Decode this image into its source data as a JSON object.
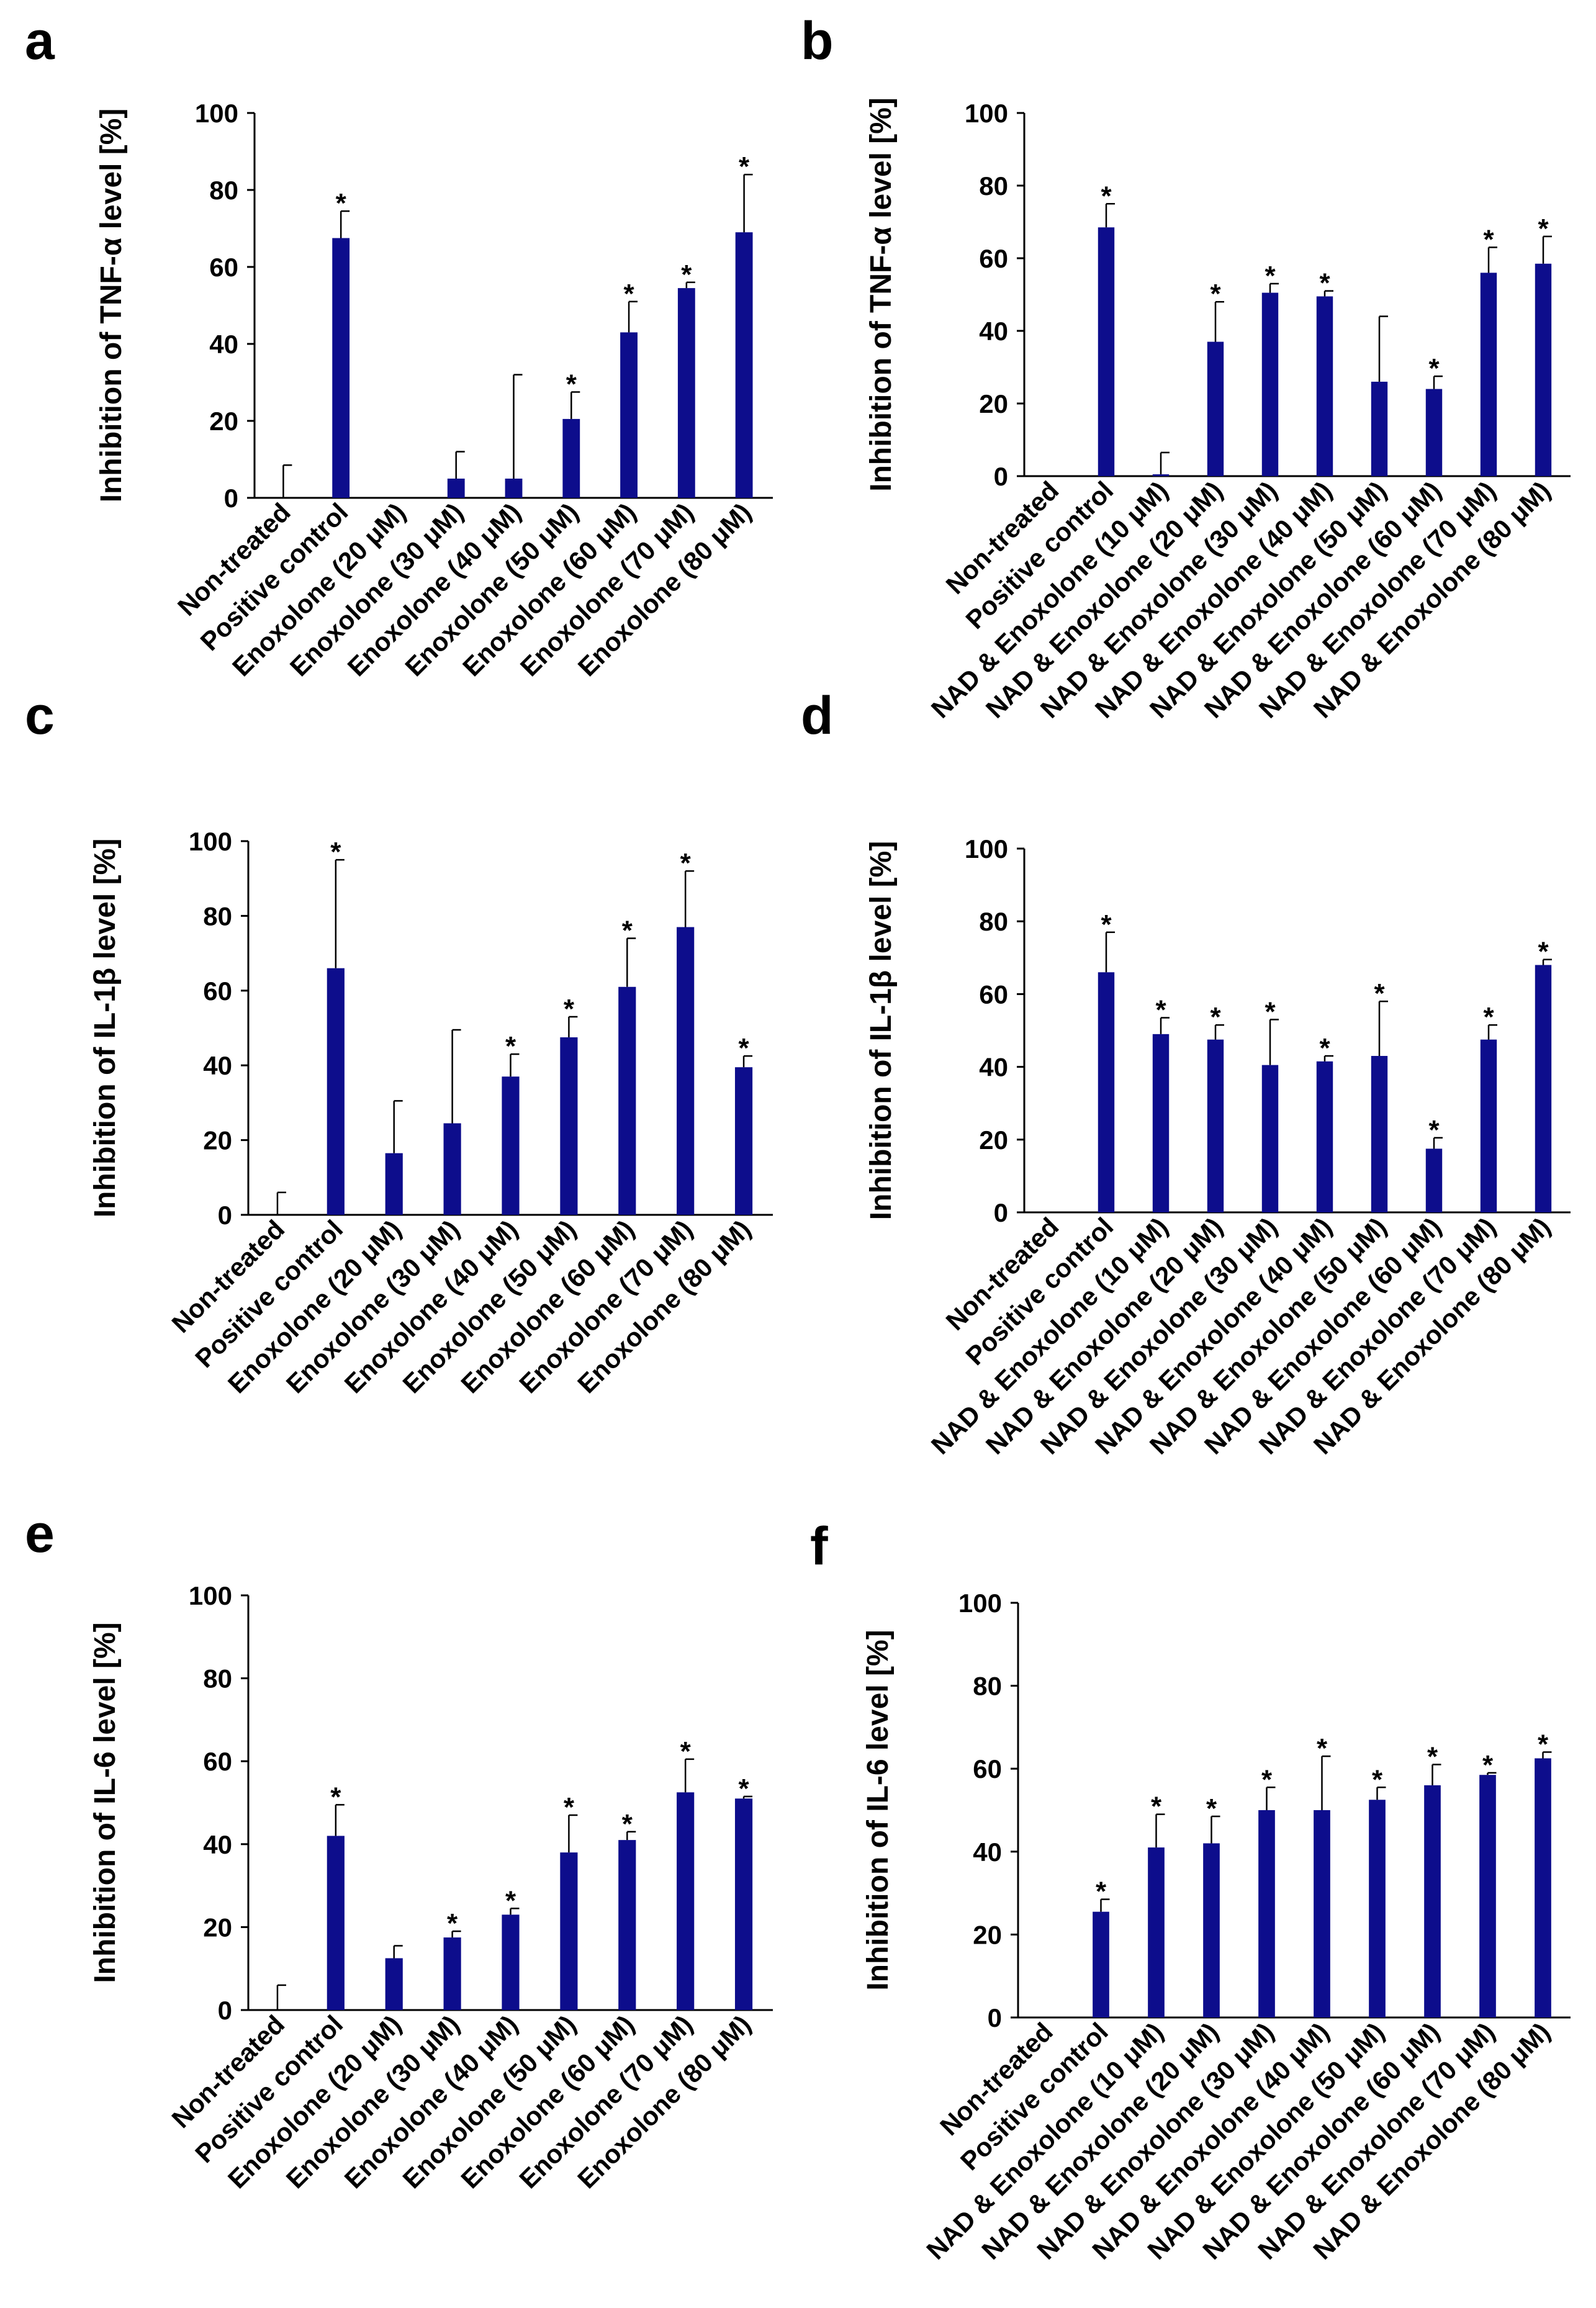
{
  "colors": {
    "bar": "#0d0d8c",
    "axis": "#000000"
  },
  "chart_data": [
    {
      "panel": "a",
      "type": "bar",
      "ylabel": "Inhibition of TNF-α level [%]",
      "ylim": [
        0,
        100
      ],
      "yticks": [
        0,
        20,
        40,
        60,
        80,
        100
      ],
      "categories": [
        "Non-treated",
        "Positive control",
        "Enoxolone (20 μM)",
        "Enoxolone (30 μM)",
        "Enoxolone (40 μM)",
        "Enoxolone (50 μM)",
        "Enoxolone (60 μM)",
        "Enoxolone (70 μM)",
        "Enoxolone (80 μM)"
      ],
      "values": [
        0,
        67.5,
        0,
        5,
        5,
        20.5,
        43,
        54.5,
        69
      ],
      "error": [
        8.5,
        7,
        0,
        7,
        27,
        7,
        8,
        1.5,
        15
      ],
      "significant": [
        false,
        true,
        false,
        false,
        false,
        true,
        true,
        true,
        true
      ]
    },
    {
      "panel": "b",
      "type": "bar",
      "ylabel": "Inhibition of TNF-α level [%]",
      "ylim": [
        0,
        100
      ],
      "yticks": [
        0,
        20,
        40,
        60,
        80,
        100
      ],
      "categories": [
        "Non-treated",
        "Positive control",
        "NAD & Enoxolone (10 μM)",
        "NAD & Enoxolone (20 μM)",
        "NAD & Enoxolone (30 μM)",
        "NAD & Enoxolone (40 μM)",
        "NAD & Enoxolone (50 μM)",
        "NAD & Enoxolone (60 μM)",
        "NAD & Enoxolone (70 μM)",
        "NAD & Enoxolone (80 μM)"
      ],
      "values": [
        0,
        68.5,
        0.5,
        37,
        50.5,
        49.5,
        26,
        24,
        56,
        58.5
      ],
      "error": [
        0,
        6.5,
        6,
        11,
        2.5,
        1.5,
        18,
        3.5,
        7,
        7.5
      ],
      "significant": [
        false,
        true,
        false,
        true,
        true,
        true,
        false,
        true,
        true,
        true
      ]
    },
    {
      "panel": "c",
      "type": "bar",
      "ylabel": "Inhibition of IL-1β  level [%]",
      "ylim": [
        0,
        100
      ],
      "yticks": [
        0,
        20,
        40,
        60,
        80,
        100
      ],
      "categories": [
        "Non-treated",
        "Positive control",
        "Enoxolone (20 μM)",
        "Enoxolone (30 μM)",
        "Enoxolone (40 μM)",
        "Enoxolone (50 μM)",
        "Enoxolone (60 μM)",
        "Enoxolone (70 μM)",
        "Enoxolone (80 μM)"
      ],
      "values": [
        0,
        66,
        16.5,
        24.5,
        37,
        47.5,
        61,
        77,
        39.5
      ],
      "error": [
        6,
        29,
        14,
        25,
        6,
        5.5,
        13,
        15,
        3
      ],
      "significant": [
        false,
        true,
        false,
        false,
        true,
        true,
        true,
        true,
        true
      ]
    },
    {
      "panel": "d",
      "type": "bar",
      "ylabel": "Inhibition of IL-1β  level [%]",
      "ylim": [
        0,
        100
      ],
      "yticks": [
        0,
        20,
        40,
        60,
        80,
        100
      ],
      "categories": [
        "Non-treated",
        "Positive control",
        "NAD & Enoxolone (10 μM)",
        "NAD & Enoxolone (20 μM)",
        "NAD & Enoxolone (30 μM)",
        "NAD & Enoxolone (40 μM)",
        "NAD & Enoxolone (50 μM)",
        "NAD & Enoxolone (60 μM)",
        "NAD & Enoxolone (70 μM)",
        "NAD & Enoxolone (80 μM)"
      ],
      "values": [
        0,
        66,
        49,
        47.5,
        40.5,
        41.5,
        43,
        17.5,
        47.5,
        68
      ],
      "error": [
        0,
        11,
        4.5,
        4,
        12.5,
        1.5,
        15,
        3,
        4,
        1.5
      ],
      "significant": [
        false,
        true,
        true,
        true,
        true,
        true,
        true,
        true,
        true,
        true
      ]
    },
    {
      "panel": "e",
      "type": "bar",
      "ylabel": "Inhibition of IL-6 level [%]",
      "ylim": [
        0,
        100
      ],
      "yticks": [
        0,
        20,
        40,
        60,
        80,
        100
      ],
      "categories": [
        "Non-treated",
        "Positive control",
        "Enoxolone (20 μM)",
        "Enoxolone (30 μM)",
        "Enoxolone (40 μM)",
        "Enoxolone (50 μM)",
        "Enoxolone (60 μM)",
        "Enoxolone (70 μM)",
        "Enoxolone (80 μM)"
      ],
      "values": [
        0,
        42,
        12.5,
        17.5,
        23,
        38,
        41,
        52.5,
        51
      ],
      "error": [
        6,
        7.5,
        3,
        1.5,
        1.5,
        9,
        2,
        8,
        0.5
      ],
      "significant": [
        false,
        true,
        false,
        true,
        true,
        true,
        true,
        true,
        true
      ]
    },
    {
      "panel": "f",
      "type": "bar",
      "ylabel": "Inhibition of IL-6 level [%]",
      "ylim": [
        0,
        100
      ],
      "yticks": [
        0,
        20,
        40,
        60,
        80,
        100
      ],
      "categories": [
        "Non-treated",
        "Positive control",
        "NAD & Enoxolone (10 μM)",
        "NAD & Enoxolone (20 μM)",
        "NAD & Enoxolone (30 μM)",
        "NAD & Enoxolone (40 μM)",
        "NAD & Enoxolone (50 μM)",
        "NAD & Enoxolone (60 μM)",
        "NAD & Enoxolone (70 μM)",
        "NAD & Enoxolone (80 μM)"
      ],
      "values": [
        0,
        25.5,
        41,
        42,
        50,
        50,
        52.5,
        56,
        58.5,
        62.5
      ],
      "error": [
        0,
        3,
        8,
        6.5,
        5.5,
        13,
        3,
        5,
        0.5,
        1.5
      ],
      "significant": [
        false,
        true,
        true,
        true,
        true,
        true,
        true,
        true,
        true,
        true
      ]
    }
  ]
}
